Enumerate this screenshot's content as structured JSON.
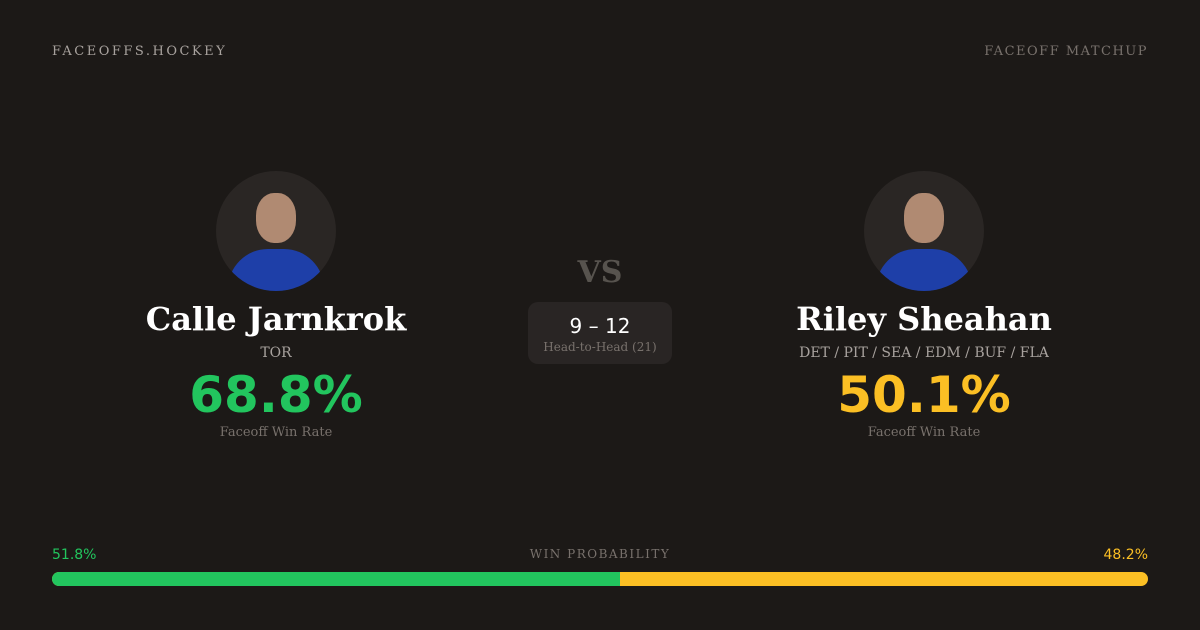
{
  "header": {
    "brand": "FACEOFFS.HOCKEY",
    "tag": "FACEOFF MATCHUP"
  },
  "player1": {
    "name": "Calle Jarnkrok",
    "team": "TOR",
    "rate": "68.8%",
    "rate_label": "Faceoff Win Rate",
    "color": "#22c55e"
  },
  "player2": {
    "name": "Riley Sheahan",
    "team": "DET / PIT / SEA / EDM / BUF / FLA",
    "rate": "50.1%",
    "rate_label": "Faceoff Win Rate",
    "color": "#fbbf24"
  },
  "vs": "VS",
  "head_to_head": {
    "score": "9 – 12",
    "label": "Head-to-Head (21)"
  },
  "win_probability": {
    "label": "WIN PROBABILITY",
    "left": "51.8%",
    "right": "48.2%",
    "left_fraction": 0.518
  }
}
